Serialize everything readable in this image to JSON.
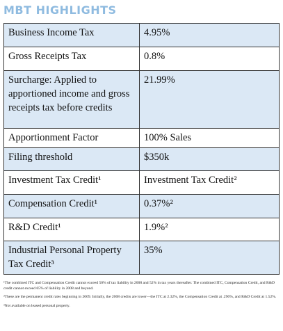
{
  "title": "MBT HIGHLIGHTS",
  "table": {
    "rows": [
      [
        "Business Income Tax",
        "4.95%"
      ],
      [
        "Gross Receipts Tax",
        "0.8%"
      ],
      [
        "Surcharge: Applied to apportioned income and gross receipts tax before credits",
        "21.99%"
      ],
      [
        "Apportionment Factor",
        "100% Sales"
      ],
      [
        "Filing threshold",
        "$350k"
      ],
      [
        "Investment Tax Credit¹",
        "Investment Tax Credit²"
      ],
      [
        "Compensation Credit¹",
        "0.37%²"
      ],
      [
        "R&D Credit¹",
        "1.9%²"
      ],
      [
        "Industrial Personal Property Tax Credit³",
        "35%"
      ]
    ]
  },
  "footnotes": [
    "¹The combined ITC and Compensation Credit cannot exceed 50% of tax liability in 2008 and 52% in tax years thereafter. The combined ITC, Compensation Credit, and R&D credit cannot exceed 65% of liability in 2008 and beyond.",
    "²These are the permanent credit rates beginning in 2009. Initially, the 2008 credits are lower—the ITC at 2.32%, the Compensation Credit at .296%, and R&D Credit at 1.52%.",
    "³Not available on leased personal property."
  ]
}
